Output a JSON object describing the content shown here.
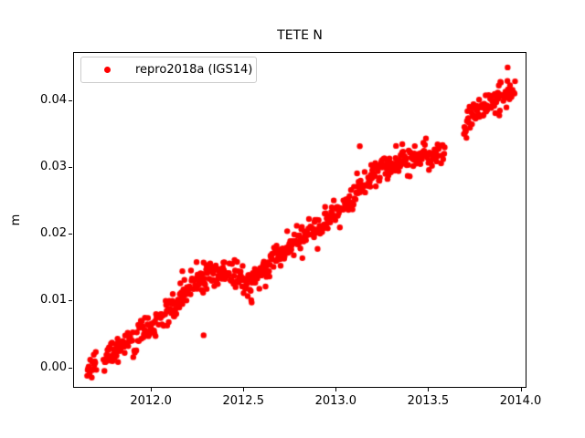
{
  "figure": {
    "title": "TETE N",
    "background_color": "#ffffff",
    "axes_color": "#000000"
  },
  "legend": {
    "label": "repro2018a (IGS14)",
    "marker_color": "#ff0000",
    "position": "upper left"
  },
  "chart_data": {
    "type": "scatter",
    "title": "TETE N",
    "xlabel": "",
    "ylabel": "m",
    "grid": false,
    "legend_position": "upper left",
    "xlim": [
      2011.5838,
      2014.0271
    ],
    "ylim": [
      -0.00293,
      0.04707
    ],
    "xtick_labels": [
      "2012.0",
      "2012.5",
      "2013.0",
      "2013.5",
      "2014.0"
    ],
    "xtick_values": [
      2012.0,
      2012.5,
      2013.0,
      2013.5,
      2014.0
    ],
    "ytick_labels": [
      "0.00",
      "0.01",
      "0.02",
      "0.03",
      "0.04"
    ],
    "ytick_values": [
      0.0,
      0.01,
      0.02,
      0.03,
      0.04
    ],
    "series": [
      {
        "name": "repro2018a (IGS14)",
        "color": "#ff0000",
        "marker": "point",
        "marker_radius_px": 3.2,
        "sampling": "daily",
        "sample_step_years": 0.0027397,
        "keep_fraction": 0.86,
        "noise_sigma_m": 0.00095,
        "x_start": 2011.655,
        "x_end": 2013.972,
        "trend_anchors": [
          [
            2011.655,
            -0.0002
          ],
          [
            2011.7,
            0.0003
          ],
          [
            2011.745,
            0.0012
          ],
          [
            2011.78,
            0.0022
          ],
          [
            2011.86,
            0.0035
          ],
          [
            2011.93,
            0.0047
          ],
          [
            2012.0,
            0.0061
          ],
          [
            2012.08,
            0.0079
          ],
          [
            2012.15,
            0.0099
          ],
          [
            2012.22,
            0.0124
          ],
          [
            2012.28,
            0.0136
          ],
          [
            2012.35,
            0.0139
          ],
          [
            2012.42,
            0.0141
          ],
          [
            2012.48,
            0.0137
          ],
          [
            2012.53,
            0.0122
          ],
          [
            2012.58,
            0.0139
          ],
          [
            2012.64,
            0.0158
          ],
          [
            2012.72,
            0.0174
          ],
          [
            2012.79,
            0.0191
          ],
          [
            2012.87,
            0.0203
          ],
          [
            2012.94,
            0.0218
          ],
          [
            2013.01,
            0.0229
          ],
          [
            2013.09,
            0.0252
          ],
          [
            2013.16,
            0.0275
          ],
          [
            2013.24,
            0.0297
          ],
          [
            2013.31,
            0.0305
          ],
          [
            2013.38,
            0.0311
          ],
          [
            2013.45,
            0.0315
          ],
          [
            2013.52,
            0.0317
          ],
          [
            2013.585,
            0.0323
          ],
          [
            2013.695,
            0.0362
          ],
          [
            2013.76,
            0.0384
          ],
          [
            2013.83,
            0.0397
          ],
          [
            2013.9,
            0.0407
          ],
          [
            2013.972,
            0.0417
          ]
        ],
        "gaps": [
          [
            2011.705,
            2011.74
          ],
          [
            2013.59,
            2013.693
          ]
        ],
        "outliers": [
          [
            2012.285,
            0.0048
          ],
          [
            2012.545,
            0.0097
          ],
          [
            2012.3,
            0.0153
          ],
          [
            2012.17,
            0.0144
          ],
          [
            2012.62,
            0.0121
          ],
          [
            2013.13,
            0.0331
          ],
          [
            2013.28,
            0.0282
          ],
          [
            2013.36,
            0.0334
          ],
          [
            2013.4,
            0.0286
          ],
          [
            2013.885,
            0.0377
          ],
          [
            2013.93,
            0.0449
          ]
        ]
      }
    ]
  }
}
